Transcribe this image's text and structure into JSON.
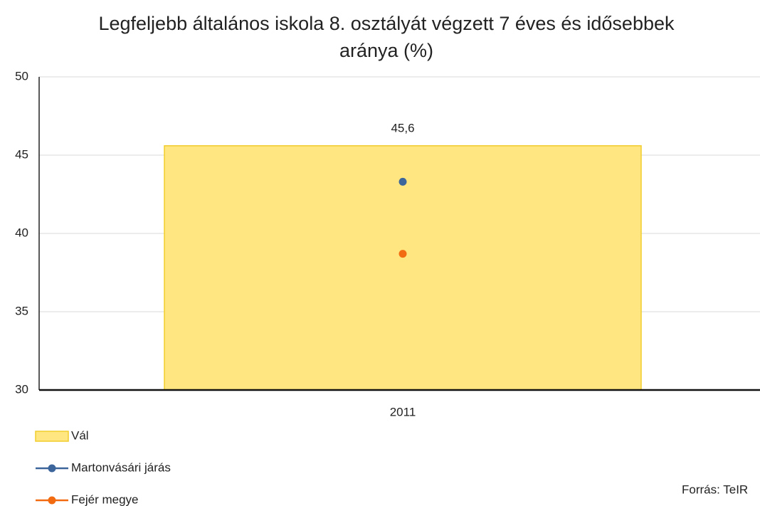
{
  "chart_data": {
    "type": "bar_line",
    "title": "Legfeljebb általános iskola 8. osztályát végzett 7 éves és idősebbek aránya (%)",
    "categories": [
      "2011"
    ],
    "series": [
      {
        "name": "Vál",
        "type": "bar",
        "color": "#ffe680",
        "values": [
          45.6
        ],
        "value_labels": [
          "45,6"
        ]
      },
      {
        "name": "Martonvásári járás",
        "type": "line",
        "color": "#3c659c",
        "values": [
          43.3
        ]
      },
      {
        "name": "Fejér megye",
        "type": "line",
        "color": "#f26b10",
        "values": [
          38.7
        ]
      }
    ],
    "ylim": [
      30,
      50
    ],
    "yticks": [
      30,
      35,
      40,
      45,
      50
    ],
    "grid": true,
    "legend": "bottom-left",
    "source": "Forrás: TeIR"
  }
}
